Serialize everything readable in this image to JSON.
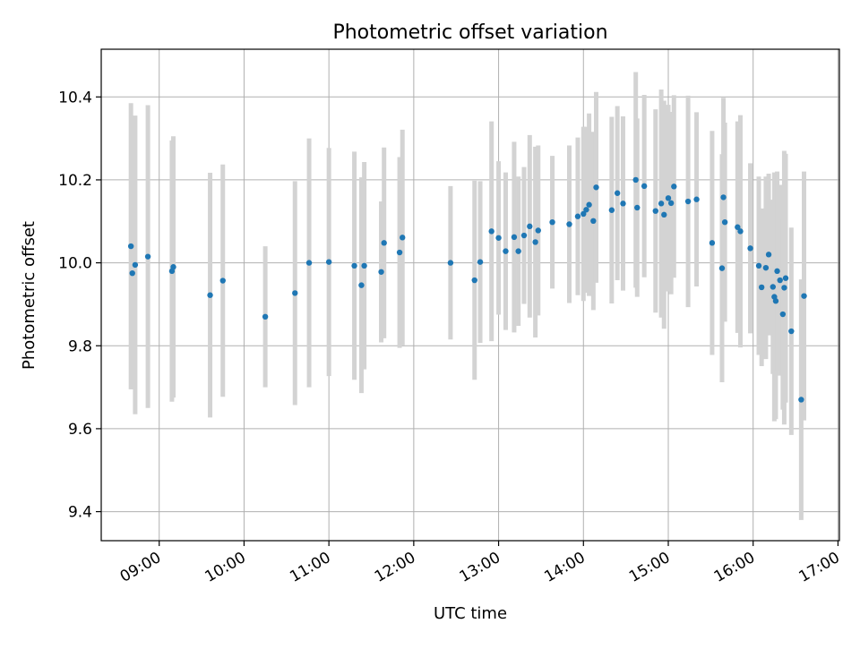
{
  "chart_data": {
    "type": "scatter",
    "title": "Photometric offset variation",
    "xlabel": "UTC time",
    "ylabel": "Photometric offset",
    "xlim": [
      "08:19",
      "17:01"
    ],
    "ylim": [
      9.33,
      10.515
    ],
    "x_ticks": [
      "09:00",
      "10:00",
      "11:00",
      "12:00",
      "13:00",
      "14:00",
      "15:00",
      "16:00",
      "17:00"
    ],
    "y_ticks": [
      9.4,
      9.6,
      9.8,
      10.0,
      10.2,
      10.4
    ],
    "y_tick_labels": [
      "9.4",
      "9.6",
      "9.8",
      "10.0",
      "10.2",
      "10.4"
    ],
    "grid": true,
    "marker_color": "#1f77b4",
    "errorbar_color": "#d3d3d3",
    "series": [
      {
        "x": [
          "08:40",
          "08:41",
          "08:43",
          "08:52",
          "09:09",
          "09:10",
          "09:36",
          "09:45",
          "10:15",
          "10:36",
          "10:46",
          "11:00",
          "11:18",
          "11:23",
          "11:25",
          "11:37",
          "11:39",
          "11:50",
          "11:52",
          "12:26",
          "12:43",
          "12:47",
          "12:55",
          "13:00",
          "13:05",
          "13:11",
          "13:14",
          "13:18",
          "13:22",
          "13:26",
          "13:28",
          "13:38",
          "13:50",
          "13:56",
          "14:00",
          "14:02",
          "14:04",
          "14:07",
          "14:09",
          "14:20",
          "14:24",
          "14:28",
          "14:37",
          "14:38",
          "14:43",
          "14:51",
          "14:55",
          "14:57",
          "15:00",
          "15:02",
          "15:04",
          "15:14",
          "15:20",
          "15:31",
          "15:38",
          "15:39",
          "15:40",
          "15:49",
          "15:51",
          "15:58",
          "16:04",
          "16:06",
          "16:09",
          "16:11",
          "16:14",
          "16:15",
          "16:16",
          "16:17",
          "16:19",
          "16:21",
          "16:22",
          "16:23",
          "16:27",
          "16:34",
          "16:36"
        ],
        "y": [
          10.04,
          9.975,
          9.995,
          10.015,
          9.98,
          9.99,
          9.922,
          9.957,
          9.87,
          9.927,
          10.0,
          10.002,
          9.993,
          9.946,
          9.993,
          9.978,
          10.048,
          10.025,
          10.061,
          10.0,
          9.958,
          10.002,
          10.076,
          10.06,
          10.028,
          10.062,
          10.028,
          10.066,
          10.088,
          10.05,
          10.078,
          10.098,
          10.093,
          10.112,
          10.118,
          10.128,
          10.14,
          10.101,
          10.182,
          10.127,
          10.168,
          10.143,
          10.2,
          10.133,
          10.185,
          10.125,
          10.143,
          10.116,
          10.156,
          10.144,
          10.184,
          10.148,
          10.153,
          10.048,
          9.987,
          10.158,
          10.098,
          10.086,
          10.076,
          10.035,
          9.993,
          9.941,
          9.988,
          10.02,
          9.942,
          9.918,
          9.908,
          9.98,
          9.958,
          9.876,
          9.94,
          9.963,
          9.835,
          9.67,
          9.92
        ],
        "yerr": [
          0.345,
          0.28,
          0.36,
          0.365,
          0.315,
          0.315,
          0.295,
          0.28,
          0.17,
          0.27,
          0.3,
          0.275,
          0.275,
          0.26,
          0.25,
          0.17,
          0.23,
          0.23,
          0.26,
          0.185,
          0.24,
          0.195,
          0.265,
          0.185,
          0.19,
          0.23,
          0.18,
          0.165,
          0.22,
          0.23,
          0.205,
          0.16,
          0.19,
          0.19,
          0.21,
          0.2,
          0.22,
          0.215,
          0.23,
          0.225,
          0.21,
          0.21,
          0.26,
          0.215,
          0.22,
          0.245,
          0.275,
          0.275,
          0.225,
          0.22,
          0.22,
          0.255,
          0.21,
          0.27,
          0.275,
          0.24,
          0.24,
          0.255,
          0.28,
          0.205,
          0.215,
          0.19,
          0.22,
          0.195,
          0.21,
          0.3,
          0.285,
          0.24,
          0.23,
          0.23,
          0.33,
          0.3,
          0.25,
          0.29,
          0.3
        ]
      }
    ]
  }
}
